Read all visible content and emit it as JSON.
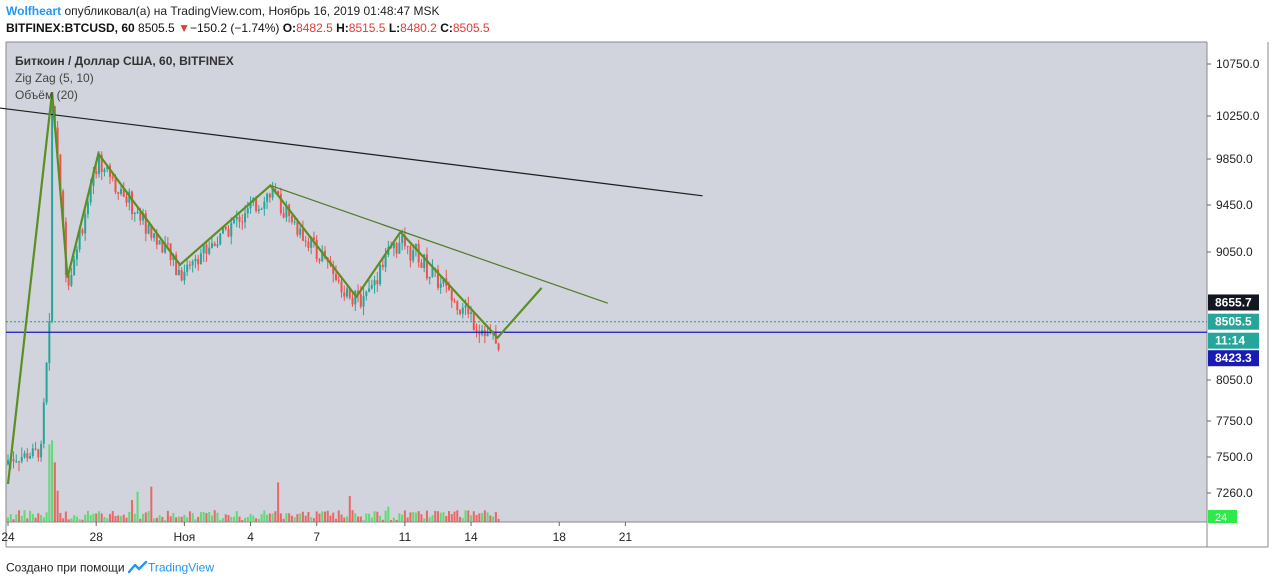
{
  "header": {
    "author": "Wolfheart",
    "published": "опубликовал(а) на TradingView.com, Ноябрь 16, 2019 01:48:47 MSK",
    "symbol_line": "BITFINEX:BTCUSD, 60",
    "last": "8505.5",
    "change_arrow": "▼",
    "change": "−150.2 (−1.74%)",
    "o_label": "O:",
    "o_value": "8482.5",
    "h_label": "H:",
    "h_value": "8515.5",
    "l_label": "L:",
    "l_value": "8480.2",
    "c_label": "C:",
    "c_value": "8505.5"
  },
  "legend": {
    "title": "Биткоин / Доллар США, 60, BITFINEX",
    "zigzag": "Zig Zag (5, 10)",
    "volume": "Объём (20)"
  },
  "footer": {
    "created_with": "Создано при помощи",
    "brand": "TradingView",
    "logo_icon": "tradingview-logo-icon"
  },
  "colors": {
    "plot_bg": "#d1d4dc",
    "up": "#26a69a",
    "down": "#ef5350",
    "vol_up": "#4cd964",
    "vol_down": "#ef5350",
    "zigzag": "#5b8f22",
    "trendline_black": "#1c1c1c",
    "trendline_green": "#4f7a28",
    "support_line": "#1a1ab4",
    "price_dotted": "#1f9a8a"
  },
  "chart_data": {
    "type": "candlestick",
    "y_ticks": [
      "10750.0",
      "10250.0",
      "9850.0",
      "9450.0",
      "9050.0",
      "8050.0",
      "7750.0",
      "7500.0",
      "7260.0"
    ],
    "y_tick_values": [
      10750,
      10250,
      9850,
      9450,
      9050,
      8050,
      7750,
      7500,
      7260
    ],
    "x_ticks": [
      "24",
      "28",
      "Ноя",
      "4",
      "7",
      "11",
      "14",
      "18",
      "21"
    ],
    "x_tick_days": [
      0,
      4,
      8,
      11,
      14,
      18,
      21,
      25,
      28
    ],
    "x_axis_unit": "days since Oct 24, 2019",
    "price_labels": [
      {
        "text": "8655.7",
        "value": 8655.7,
        "bg": "#131722"
      },
      {
        "text": "8505.5",
        "value": 8505.5,
        "bg": "#26a69a"
      },
      {
        "text": "11:14",
        "value": 8423.3,
        "bg": "#26a69a",
        "offset": 1
      },
      {
        "text": "8423.3",
        "value": 8423.3,
        "bg": "#1a1ab4",
        "offset": 2
      }
    ],
    "volume_label": "24",
    "zigzag": [
      {
        "day": 0.0,
        "price": 7320
      },
      {
        "day": 2.0,
        "price": 10480
      },
      {
        "day": 2.7,
        "price": 8850
      },
      {
        "day": 4.1,
        "price": 9900
      },
      {
        "day": 7.8,
        "price": 8950
      },
      {
        "day": 11.9,
        "price": 9620
      },
      {
        "day": 15.8,
        "price": 8700
      },
      {
        "day": 17.8,
        "price": 9220
      },
      {
        "day": 22.2,
        "price": 8380
      },
      {
        "day": 24.2,
        "price": 8770
      }
    ],
    "trendlines": [
      {
        "name": "black",
        "from": {
          "day": -0.5,
          "price": 10330
        },
        "to": {
          "day": 31.5,
          "price": 9530
        }
      },
      {
        "name": "green",
        "from": {
          "day": 11.9,
          "price": 9620
        },
        "to": {
          "day": 27.2,
          "price": 8650
        }
      }
    ],
    "support_level": 8423.3,
    "last_price": 8505.5
  }
}
